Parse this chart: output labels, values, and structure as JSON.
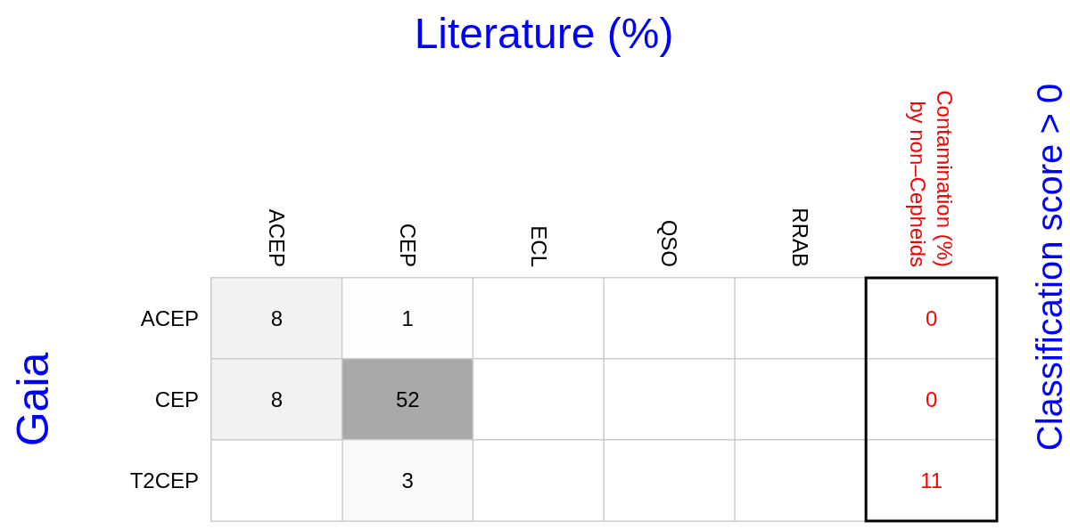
{
  "chart_data": {
    "type": "heatmap",
    "title": "Literature (%)",
    "ylabel": "Gaia",
    "categories": [
      "ACEP",
      "CEP",
      "ECL",
      "QSO",
      "RRAB",
      "Contamination (%)\nby non–Cepheids"
    ],
    "y_categories": [
      "ACEP",
      "CEP",
      "T2CEP"
    ],
    "cells": [
      [
        8,
        1,
        null,
        null,
        null,
        0
      ],
      [
        8,
        52,
        null,
        null,
        null,
        0
      ],
      [
        null,
        3,
        null,
        null,
        null,
        11
      ]
    ],
    "data_labels": true,
    "annotations": [
      "Classification score > 0"
    ]
  }
}
